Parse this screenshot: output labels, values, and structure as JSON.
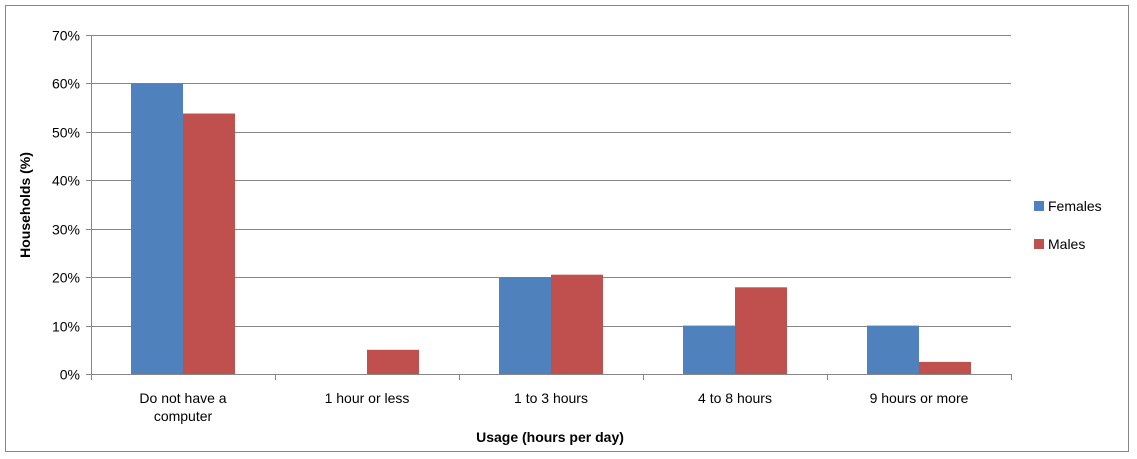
{
  "chart_data": {
    "type": "bar",
    "title": "",
    "xlabel": "Usage (hours per day)",
    "ylabel": "Households (%)",
    "ylim": [
      0,
      70
    ],
    "yticks": [
      0,
      10,
      20,
      30,
      40,
      50,
      60,
      70
    ],
    "ytick_format": "percent",
    "grid": true,
    "legend_position": "right",
    "categories": [
      [
        "Do not have a",
        "computer"
      ],
      [
        "1 hour or less"
      ],
      [
        "1 to 3 hours"
      ],
      [
        "4 to 8 hours"
      ],
      [
        "9 hours or more"
      ]
    ],
    "series": [
      {
        "name": "Females",
        "color": "#4F81BD",
        "values": [
          60,
          0,
          20,
          10,
          10
        ]
      },
      {
        "name": "Males",
        "color": "#C0504D",
        "values": [
          53.8,
          5,
          20.5,
          17.9,
          2.5
        ]
      }
    ]
  }
}
